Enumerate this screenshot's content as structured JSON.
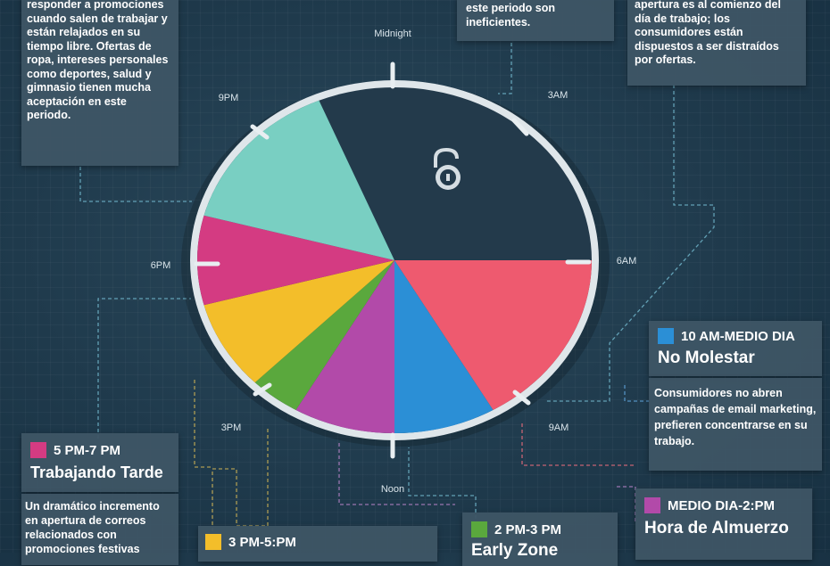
{
  "clock": {
    "labels": {
      "midnight": "Midnight",
      "3am": "3AM",
      "6am": "6AM",
      "9am": "9AM",
      "noon": "Noon",
      "3pm": "3PM",
      "6pm": "6PM",
      "9pm": "9PM"
    },
    "center_icon": "unlocked-padlock-icon"
  },
  "colors": {
    "pink_red": "#ee5a6f",
    "blue": "#2b8fd6",
    "purple": "#b24aa9",
    "green": "#5aa83d",
    "yellow": "#f3be2a",
    "magenta": "#d43b82",
    "teal": "#79cfc2",
    "dark": "#233a4b"
  },
  "boxes": {
    "top_left": {
      "text": "responder a promociones cuando salen de trabajar y están relajados en su tiempo libre. Ofertas de ropa, intereses personales como deportes, salud y gimnasio tienen mucha aceptación en este periodo."
    },
    "top_mid": {
      "text": "este periodo son ineficientes."
    },
    "top_right": {
      "text": "apertura es al comienzo del día de trabajo; los consumidores están dispuestos a ser distraídos por ofertas."
    },
    "ten_am": {
      "time": "10 AM-MEDIO DIA",
      "title": "No Molestar",
      "text": "Consumidores no abren campañas de email marketing, prefieren concentrarse en su trabajo."
    },
    "five_pm": {
      "time": "5 PM-7 PM",
      "title": "Trabajando Tarde",
      "text": "Un dramático incremento en apertura de correos relacionados con promociones festivas"
    },
    "three_pm": {
      "time": "3 PM-5:PM"
    },
    "two_pm": {
      "time": "2 PM-3 PM",
      "title": "Early Zone"
    },
    "noon": {
      "time": "MEDIO DIA-2:PM",
      "title": "Hora de Almuerzo"
    }
  }
}
